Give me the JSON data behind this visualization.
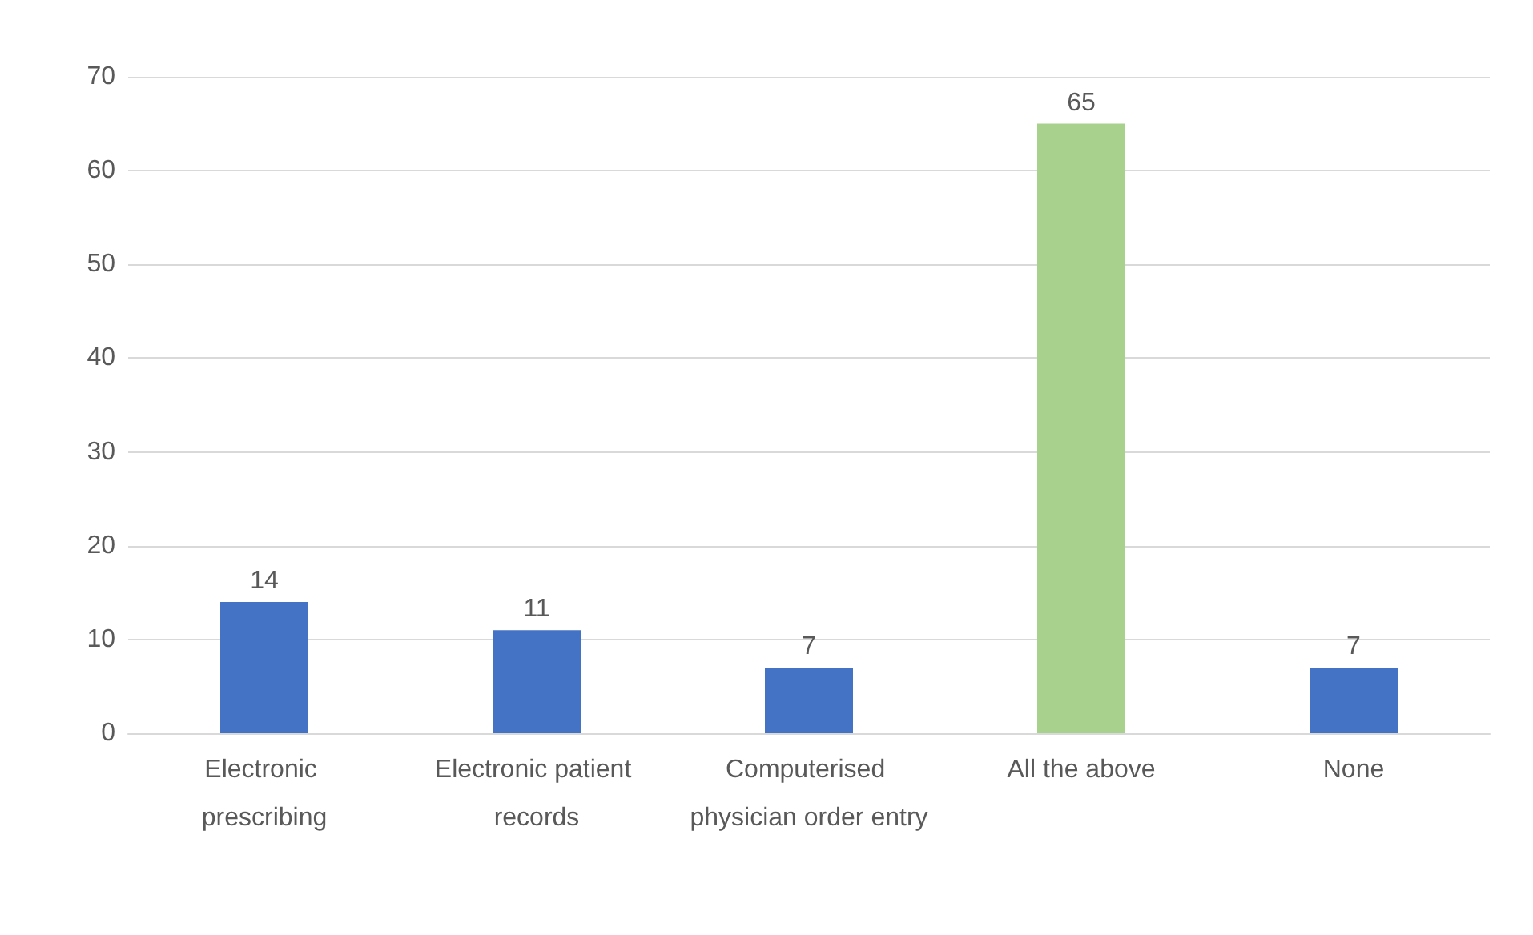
{
  "chart_data": {
    "type": "bar",
    "categories": [
      "Electronic prescribing",
      "Electronic patient records",
      "Computerised physician order entry",
      "All the above",
      "None"
    ],
    "values": [
      14,
      11,
      7,
      65,
      7
    ],
    "colors": [
      "#4472c4",
      "#4472c4",
      "#4472c4",
      "#a9d18e",
      "#4472c4"
    ],
    "ylim": [
      0,
      70
    ],
    "yticks": [
      0,
      10,
      20,
      30,
      40,
      50,
      60,
      70
    ],
    "grid": "y",
    "data_labels": true
  }
}
